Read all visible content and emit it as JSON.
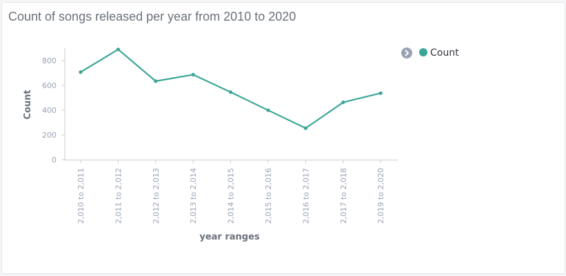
{
  "panel": {
    "title": "Count of songs released per year from 2010 to 2020"
  },
  "legend": {
    "toggle_icon": "chevron-right-icon"
  },
  "chart_data": {
    "type": "line",
    "title": "Count of songs released per year from 2010 to 2020",
    "xlabel": "year ranges",
    "ylabel": "Count",
    "categories": [
      "2,010 to 2,011",
      "2,011 to 2,012",
      "2,012 to 2,013",
      "2,013 to 2,014",
      "2,014 to 2,015",
      "2,015 to 2,016",
      "2,016 to 2,017",
      "2,017 to 2,018",
      "2,019 to 2,020"
    ],
    "series": [
      {
        "name": "Count",
        "color": "#3ba698",
        "values": [
          707,
          890,
          634,
          686,
          545,
          399,
          254,
          463,
          537
        ]
      }
    ],
    "ylim": [
      0,
      900
    ],
    "yticks": [
      0,
      200,
      400,
      600,
      800
    ],
    "grid": false,
    "legend_position": "top-right"
  }
}
